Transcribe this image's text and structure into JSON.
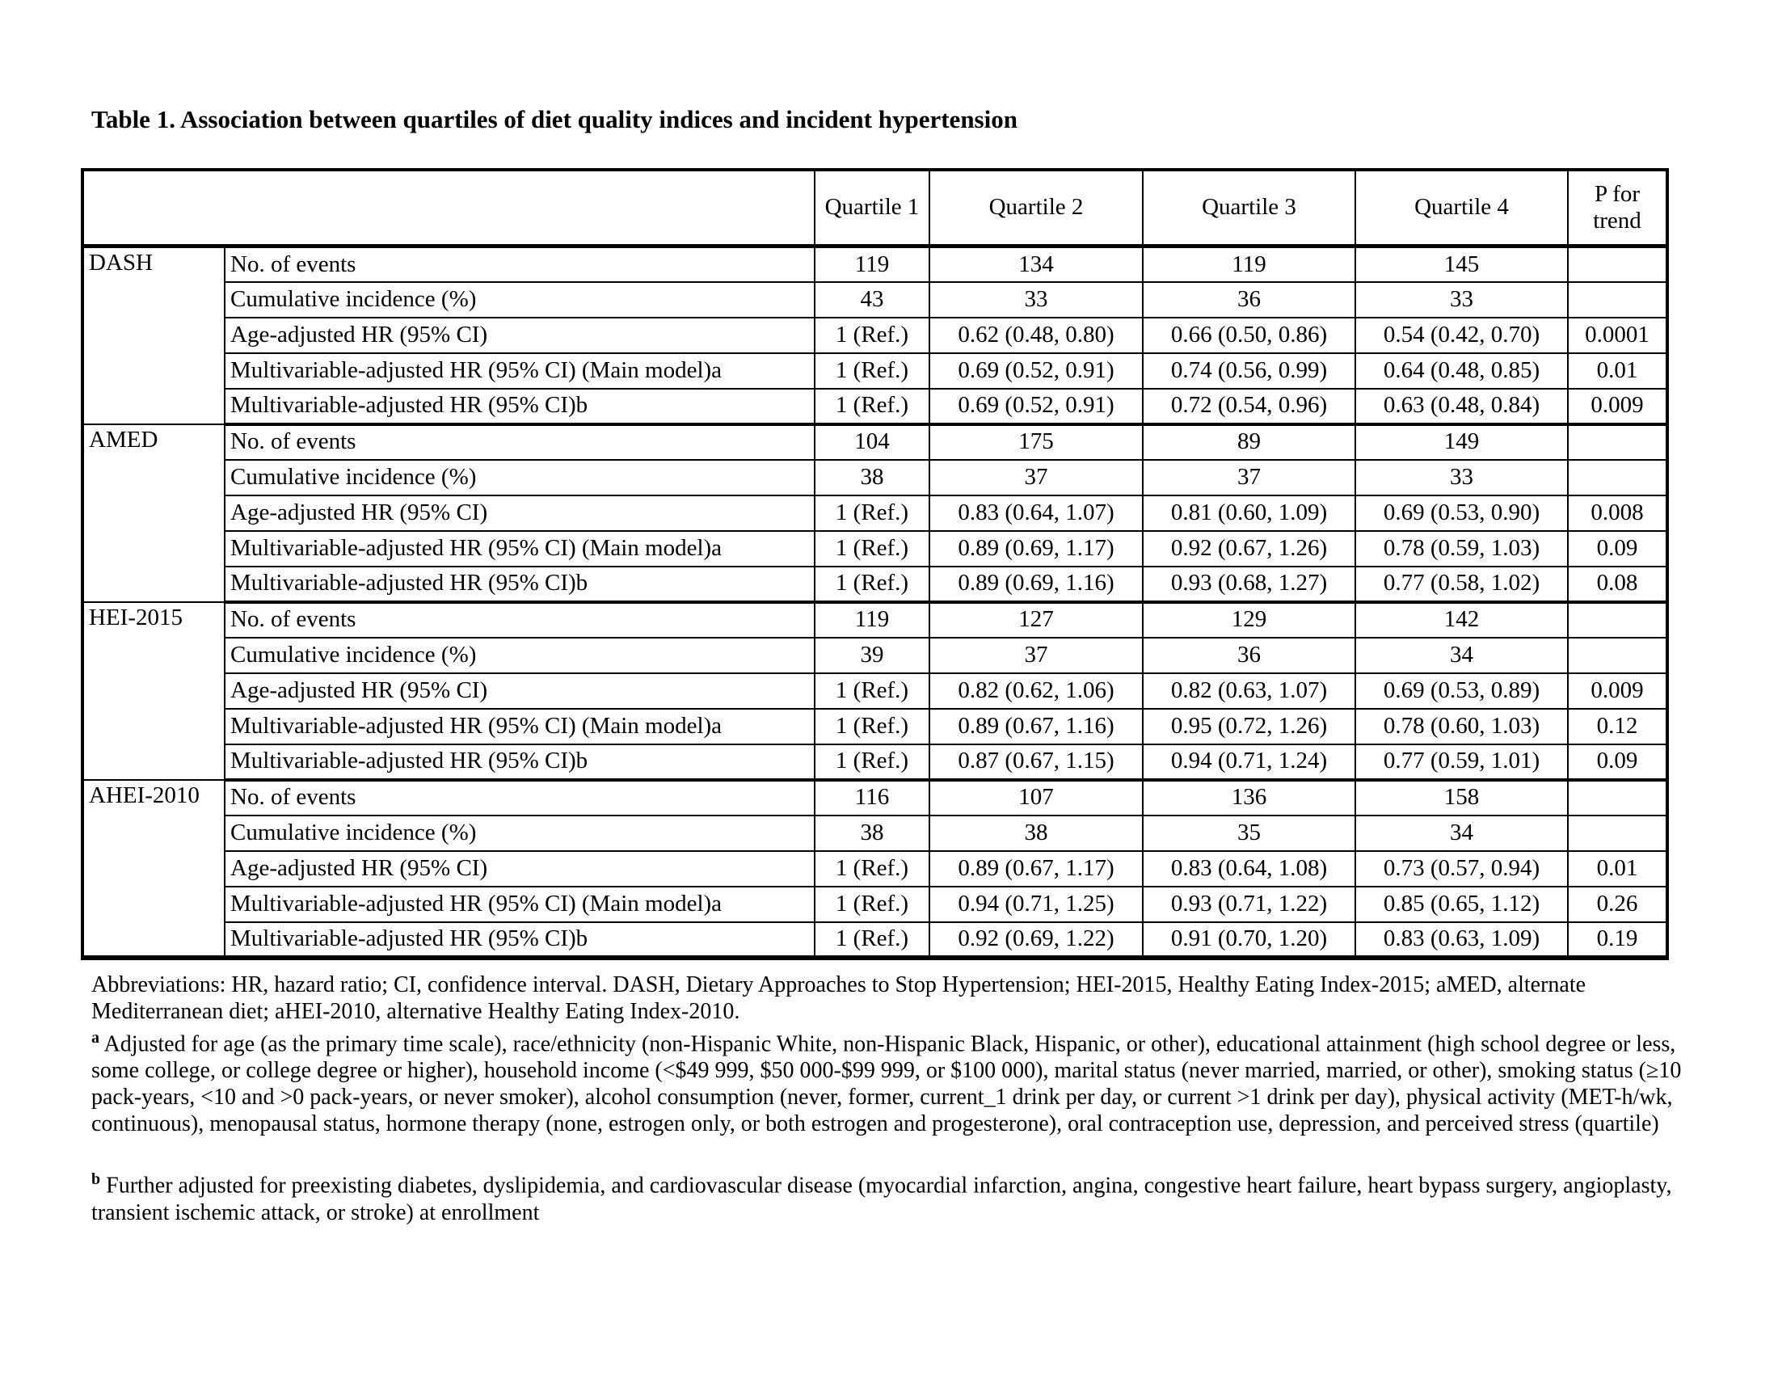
{
  "page": {
    "title": "Table 1. Association between quartiles of diet quality indices and incident hypertension"
  },
  "table": {
    "column_headers": [
      "Quartile 1",
      "Quartile 2",
      "Quartile 3",
      "Quartile 4",
      "P for trend"
    ],
    "groups": [
      {
        "name": "DASH",
        "rows": [
          {
            "label": "No. of events",
            "values": [
              "119",
              "134",
              "119",
              "145",
              ""
            ]
          },
          {
            "label": "Cumulative incidence (%)",
            "values": [
              "43",
              "33",
              "36",
              "33",
              ""
            ]
          },
          {
            "label": "Age-adjusted HR (95% CI)",
            "values": [
              "1 (Ref.)",
              "0.62 (0.48, 0.80)",
              "0.66 (0.50, 0.86)",
              "0.54 (0.42, 0.70)",
              "0.0001"
            ]
          },
          {
            "label": "Multivariable-adjusted HR (95% CI) (Main model)a",
            "values": [
              "1 (Ref.)",
              "0.69 (0.52, 0.91)",
              "0.74 (0.56, 0.99)",
              "0.64 (0.48, 0.85)",
              "0.01"
            ]
          },
          {
            "label": "Multivariable-adjusted HR (95% CI)b",
            "values": [
              "1 (Ref.)",
              "0.69 (0.52, 0.91)",
              "0.72 (0.54, 0.96)",
              "0.63 (0.48, 0.84)",
              "0.009"
            ]
          }
        ]
      },
      {
        "name": "AMED",
        "rows": [
          {
            "label": "No. of events",
            "values": [
              "104",
              "175",
              "89",
              "149",
              ""
            ]
          },
          {
            "label": "Cumulative incidence (%)",
            "values": [
              "38",
              "37",
              "37",
              "33",
              ""
            ]
          },
          {
            "label": "Age-adjusted HR (95% CI)",
            "values": [
              "1 (Ref.)",
              "0.83 (0.64, 1.07)",
              "0.81 (0.60, 1.09)",
              "0.69 (0.53, 0.90)",
              "0.008"
            ]
          },
          {
            "label": "Multivariable-adjusted HR (95% CI) (Main model)a",
            "values": [
              "1 (Ref.)",
              "0.89 (0.69, 1.17)",
              "0.92 (0.67, 1.26)",
              "0.78 (0.59, 1.03)",
              "0.09"
            ]
          },
          {
            "label": "Multivariable-adjusted HR (95% CI)b",
            "values": [
              "1 (Ref.)",
              "0.89 (0.69, 1.16)",
              "0.93 (0.68, 1.27)",
              "0.77 (0.58, 1.02)",
              "0.08"
            ]
          }
        ]
      },
      {
        "name": "HEI-2015",
        "rows": [
          {
            "label": "No. of events",
            "values": [
              "119",
              "127",
              "129",
              "142",
              ""
            ]
          },
          {
            "label": "Cumulative incidence (%)",
            "values": [
              "39",
              "37",
              "36",
              "34",
              ""
            ]
          },
          {
            "label": "Age-adjusted HR (95% CI)",
            "values": [
              "1 (Ref.)",
              "0.82 (0.62, 1.06)",
              "0.82 (0.63, 1.07)",
              "0.69 (0.53, 0.89)",
              "0.009"
            ]
          },
          {
            "label": "Multivariable-adjusted HR (95% CI) (Main model)a",
            "values": [
              "1 (Ref.)",
              "0.89 (0.67, 1.16)",
              "0.95 (0.72, 1.26)",
              "0.78 (0.60, 1.03)",
              "0.12"
            ]
          },
          {
            "label": "Multivariable-adjusted HR (95% CI)b",
            "values": [
              "1 (Ref.)",
              "0.87 (0.67, 1.15)",
              "0.94 (0.71, 1.24)",
              "0.77 (0.59, 1.01)",
              "0.09"
            ]
          }
        ]
      },
      {
        "name": "AHEI-2010",
        "rows": [
          {
            "label": "No. of events",
            "values": [
              "116",
              "107",
              "136",
              "158",
              ""
            ]
          },
          {
            "label": "Cumulative incidence (%)",
            "values": [
              "38",
              "38",
              "35",
              "34",
              ""
            ]
          },
          {
            "label": "Age-adjusted HR (95% CI)",
            "values": [
              "1 (Ref.)",
              "0.89 (0.67, 1.17)",
              "0.83 (0.64, 1.08)",
              "0.73 (0.57, 0.94)",
              "0.01"
            ]
          },
          {
            "label": "Multivariable-adjusted HR (95% CI) (Main model)a",
            "values": [
              "1 (Ref.)",
              "0.94 (0.71, 1.25)",
              "0.93 (0.71, 1.22)",
              "0.85 (0.65, 1.12)",
              "0.26"
            ]
          },
          {
            "label": "Multivariable-adjusted HR (95% CI)b",
            "values": [
              "1 (Ref.)",
              "0.92 (0.69, 1.22)",
              "0.91 (0.70, 1.20)",
              "0.83 (0.63, 1.09)",
              "0.19"
            ]
          }
        ]
      }
    ]
  },
  "footnotes": {
    "abbreviations": "Abbreviations: HR, hazard ratio; CI, confidence interval. DASH, Dietary Approaches to Stop Hypertension; HEI-2015, Healthy Eating Index-2015; aMED, alternate Mediterranean diet; aHEI-2010, alternative Healthy Eating Index-2010.",
    "a_marker": "a",
    "a_text": "Adjusted for age (as the primary time scale), race/ethnicity (non-Hispanic White, non-Hispanic Black, Hispanic, or other), educational attainment (high school degree or less, some college, or college degree or higher), household income (<$49 999, $50 000-$99 999, or $100 000),  marital status (never married, married, or other), smoking status (≥10 pack-years, <10 and >0 pack-years, or never smoker), alcohol consumption (never, former, current_1 drink per day, or current >1 drink per day), physical activity (MET-h/wk, continuous), menopausal status, hormone therapy (none, estrogen only, or both estrogen and progesterone), oral contraception use, depression, and perceived stress (quartile)",
    "b_marker": "b",
    "b_text": "Further adjusted for preexisting diabetes, dyslipidemia, and cardiovascular disease (myocardial infarction, angina, congestive heart failure, heart bypass surgery, angioplasty, transient ischemic attack, or stroke) at enrollment"
  }
}
